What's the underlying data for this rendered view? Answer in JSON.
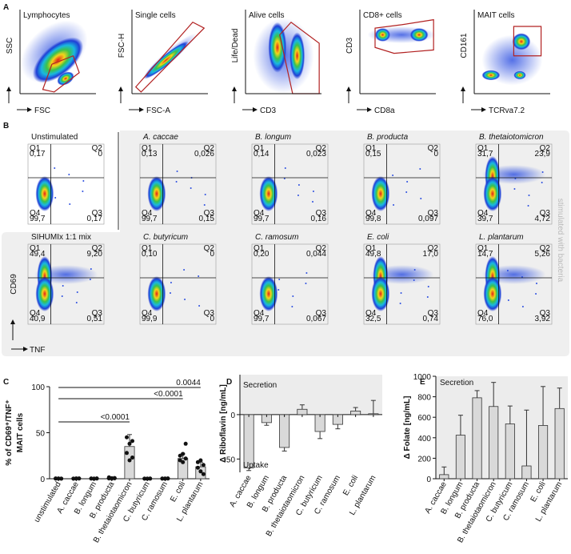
{
  "panel_labels": [
    "A",
    "B",
    "C",
    "D",
    "E"
  ],
  "flow_gating": {
    "plots": [
      {
        "title": "Lymphocytes",
        "y_label": "SSC",
        "x_label": "FSC"
      },
      {
        "title": "Single cells",
        "y_label": "FSC-H",
        "x_label": "FSC-A"
      },
      {
        "title": "Alive cells",
        "y_label": "Life/Dead",
        "x_label": "CD3"
      },
      {
        "title": "CD8+ cells",
        "y_label": "CD3",
        "x_label": "CD8a"
      },
      {
        "title": "MAIT cells",
        "y_label": "CD161",
        "x_label": "TCRva7.2"
      }
    ]
  },
  "flow_stimulation": {
    "y_label": "CD69",
    "x_label": "TNF",
    "side_label": "stimulated with bacteria",
    "plots": [
      {
        "title": "Unstimulated",
        "quadrants": [
          {
            "label": "Q1",
            "value": "0,17"
          },
          {
            "label": "Q2",
            "value": "0"
          },
          {
            "label": "Q4",
            "value": "99,7"
          },
          {
            "label": "Q3",
            "value": "0,17"
          }
        ]
      },
      {
        "title": "A. caccae",
        "quadrants": [
          {
            "label": "Q1",
            "value": "0,13"
          },
          {
            "label": "Q2",
            "value": "0,026"
          },
          {
            "label": "Q4",
            "value": "99,7"
          },
          {
            "label": "Q3",
            "value": "0,15"
          }
        ]
      },
      {
        "title": "B. longum",
        "quadrants": [
          {
            "label": "Q1",
            "value": "0,14"
          },
          {
            "label": "Q2",
            "value": "0,023"
          },
          {
            "label": "Q4",
            "value": "99,7"
          },
          {
            "label": "Q3",
            "value": "0,16"
          }
        ]
      },
      {
        "title": "B. producta",
        "quadrants": [
          {
            "label": "Q1",
            "value": "0,15"
          },
          {
            "label": "Q2",
            "value": "0"
          },
          {
            "label": "Q4",
            "value": "99,8"
          },
          {
            "label": "Q3",
            "value": "0,097"
          }
        ]
      },
      {
        "title": "B. thetaiotomicron",
        "quadrants": [
          {
            "label": "Q1",
            "value": "31,7"
          },
          {
            "label": "Q2",
            "value": "23,9"
          },
          {
            "label": "Q4",
            "value": "39,7"
          },
          {
            "label": "Q3",
            "value": "4,72"
          }
        ]
      },
      {
        "title": "SIHUMIx 1:1 mix",
        "quadrants": [
          {
            "label": "Q1",
            "value": "49,4"
          },
          {
            "label": "Q2",
            "value": "9,20"
          },
          {
            "label": "Q4",
            "value": "40,9"
          },
          {
            "label": "Q3",
            "value": "0,51"
          }
        ]
      },
      {
        "title": "C. butyricum",
        "quadrants": [
          {
            "label": "Q1",
            "value": "0,10"
          },
          {
            "label": "Q2",
            "value": "0"
          },
          {
            "label": "Q4",
            "value": "99,9"
          },
          {
            "label": "Q3",
            "value": "0"
          }
        ]
      },
      {
        "title": "C. ramosum",
        "quadrants": [
          {
            "label": "Q1",
            "value": "0,20"
          },
          {
            "label": "Q2",
            "value": "0,044"
          },
          {
            "label": "Q4",
            "value": "99,7"
          },
          {
            "label": "Q3",
            "value": "0,067"
          }
        ]
      },
      {
        "title": "E. coli",
        "quadrants": [
          {
            "label": "Q1",
            "value": "49,8"
          },
          {
            "label": "Q2",
            "value": "17,0"
          },
          {
            "label": "Q4",
            "value": "32,5"
          },
          {
            "label": "Q3",
            "value": "0,74"
          }
        ]
      },
      {
        "title": "L. plantarum",
        "quadrants": [
          {
            "label": "Q1",
            "value": "14,7"
          },
          {
            "label": "Q2",
            "value": "5,26"
          },
          {
            "label": "Q4",
            "value": "76,0"
          },
          {
            "label": "Q3",
            "value": "3,92"
          }
        ]
      }
    ]
  },
  "chart_data": [
    {
      "type": "bar",
      "y_label": [
        "% of CD69⁺/TNF⁺",
        "MAIT cells"
      ],
      "categories": [
        "unstimulated",
        "A. caccae",
        "B. longum",
        "B. producta",
        "B. thetaiotaomicron",
        "C. butyricum",
        "C. ramosum",
        "E. coli",
        "L. plantarum"
      ],
      "values": [
        0.2,
        0.2,
        0.2,
        0.5,
        35,
        0.1,
        0.2,
        22,
        13
      ],
      "errors": [
        0.2,
        0.2,
        0.2,
        1,
        13,
        0.1,
        0.2,
        5,
        5
      ],
      "points": [
        [
          0.1,
          0.2,
          0.1,
          0.3,
          0.2,
          0.1
        ],
        [
          0.1,
          0.3,
          0.2,
          0.1,
          0.2,
          0.3
        ],
        [
          0.2,
          0.1,
          0.3,
          0.2,
          0.1,
          0.2
        ],
        [
          0.3,
          0.5,
          0.8,
          1.5,
          0.2,
          0.4
        ],
        [
          28,
          20,
          23,
          45,
          38,
          41
        ],
        [
          0.1,
          0.1,
          0.2,
          0.1,
          0.1,
          0.1
        ],
        [
          0.1,
          0.2,
          0.3,
          0.2,
          0.1,
          0.2
        ],
        [
          20,
          18,
          22,
          25,
          27,
          38
        ],
        [
          12,
          8,
          5,
          18,
          20,
          15
        ]
      ],
      "color": "#d9d9d9",
      "ylim": [
        0,
        100
      ],
      "yticks": [
        0,
        50,
        100
      ],
      "shaded": false,
      "annotations": [
        "0.0044",
        "<0.0001",
        "<0.0001"
      ]
    },
    {
      "type": "bar",
      "y_label": "Δ Riboflavin [ng/mL]",
      "categories": [
        "A. caccae",
        "B. longum",
        "B. producta",
        "B. thetaiotaomicron",
        "C. butyricum",
        "C. ramosum",
        "E. coli",
        "L. plantarum"
      ],
      "values": [
        -60,
        -9,
        -37,
        6,
        -19,
        -11,
        4,
        1
      ],
      "errors": [
        3,
        3,
        4,
        5,
        8,
        5,
        4,
        15
      ],
      "color": "#d9d9d9",
      "ylim": [
        -65,
        45
      ],
      "yticks": [
        -50,
        0
      ],
      "shaded": true,
      "annotations": [
        "Secretion",
        "Uptake"
      ]
    },
    {
      "type": "bar",
      "y_label": "Δ Folate [ng/mL]",
      "categories": [
        "A. caccae",
        "B. longum",
        "B. producta",
        "B. thetaiotaomicron",
        "C. butyricum",
        "C. ramosum",
        "E. coli",
        "L. plantarum"
      ],
      "values": [
        40,
        425,
        790,
        705,
        535,
        125,
        520,
        685
      ],
      "errors": [
        75,
        195,
        70,
        235,
        175,
        545,
        380,
        200
      ],
      "color": "#d9d9d9",
      "ylim": [
        0,
        1000
      ],
      "yticks": [
        0,
        200,
        400,
        600,
        800,
        1000
      ],
      "shaded": true,
      "annotations": [
        "Secretion"
      ]
    }
  ]
}
